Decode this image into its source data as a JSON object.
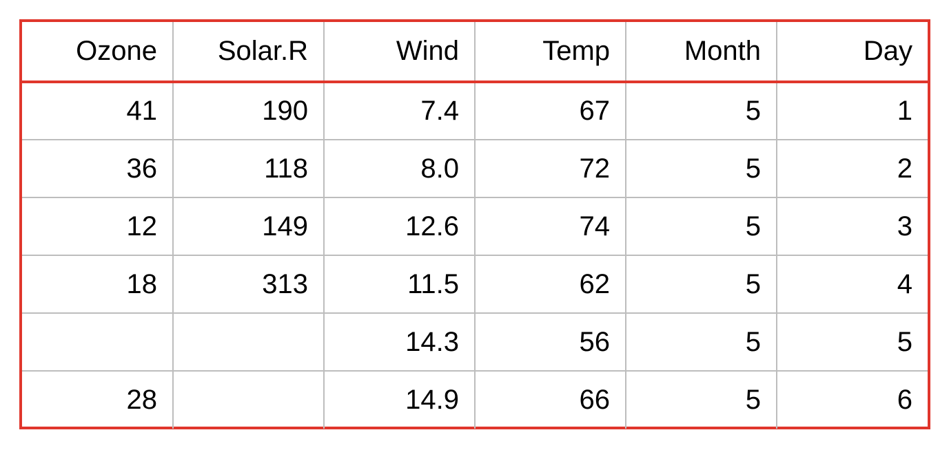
{
  "table": {
    "columns": [
      "Ozone",
      "Solar.R",
      "Wind",
      "Temp",
      "Month",
      "Day"
    ],
    "rows": [
      [
        "41",
        "190",
        "7.4",
        "67",
        "5",
        "1"
      ],
      [
        "36",
        "118",
        "8.0",
        "72",
        "5",
        "2"
      ],
      [
        "12",
        "149",
        "12.6",
        "74",
        "5",
        "3"
      ],
      [
        "18",
        "313",
        "11.5",
        "62",
        "5",
        "4"
      ],
      [
        "",
        "",
        "14.3",
        "56",
        "5",
        "5"
      ],
      [
        "28",
        "",
        "14.9",
        "66",
        "5",
        "6"
      ]
    ]
  },
  "colors": {
    "frame_border": "#e0362c",
    "grid_line": "#bdbdbd",
    "text": "#000000",
    "background": "#ffffff"
  }
}
